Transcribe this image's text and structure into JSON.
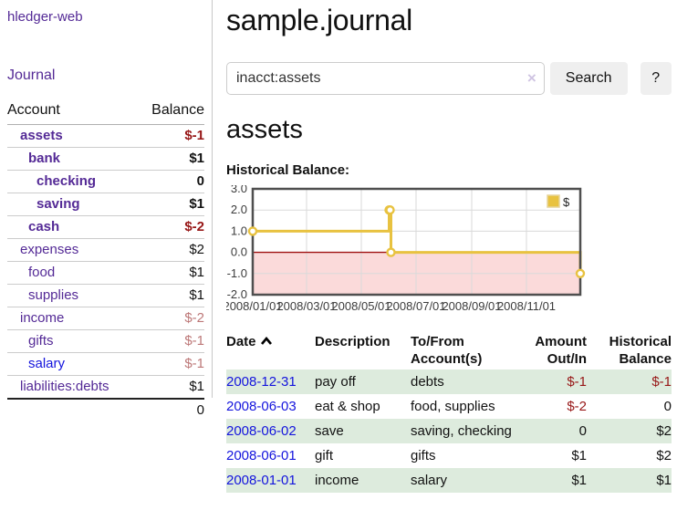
{
  "colors": {
    "purple": "#542a96",
    "blue": "#1414dd",
    "neg-strong": "#971717",
    "neg-faded": "#bd7878",
    "stripe": "#ddebdd",
    "btn-bg": "#efefef",
    "divider": "#c8c8c8"
  },
  "sidebar": {
    "brand": "hledger-web",
    "nav": {
      "journal": "Journal"
    },
    "accounts_table": {
      "headers": {
        "account": "Account",
        "balance": "Balance"
      },
      "rows": [
        {
          "name": "assets",
          "level": 1,
          "balance": "$-1",
          "bold": true,
          "neg": "strong",
          "link": "visited"
        },
        {
          "name": "bank",
          "level": 2,
          "balance": "$1",
          "bold": true,
          "neg": "none",
          "link": "visited"
        },
        {
          "name": "checking",
          "level": 3,
          "balance": "0",
          "bold": true,
          "neg": "none",
          "link": "visited"
        },
        {
          "name": "saving",
          "level": 3,
          "balance": "$1",
          "bold": true,
          "neg": "none",
          "link": "visited"
        },
        {
          "name": "cash",
          "level": 2,
          "balance": "$-2",
          "bold": true,
          "neg": "strong",
          "link": "visited"
        },
        {
          "name": "expenses",
          "level": 1,
          "balance": "$2",
          "bold": false,
          "neg": "none",
          "link": "visited"
        },
        {
          "name": "food",
          "level": 2,
          "balance": "$1",
          "bold": false,
          "neg": "none",
          "link": "visited"
        },
        {
          "name": "supplies",
          "level": 2,
          "balance": "$1",
          "bold": false,
          "neg": "none",
          "link": "visited"
        },
        {
          "name": "income",
          "level": 1,
          "balance": "$-2",
          "bold": false,
          "neg": "faded",
          "link": "visited"
        },
        {
          "name": "gifts",
          "level": 2,
          "balance": "$-1",
          "bold": false,
          "neg": "faded",
          "link": "visited"
        },
        {
          "name": "salary",
          "level": 2,
          "balance": "$-1",
          "bold": false,
          "neg": "faded",
          "link": "unvisited"
        },
        {
          "name": "liabilities:debts",
          "level": 1,
          "balance": "$1",
          "bold": false,
          "neg": "none",
          "link": "visited"
        }
      ],
      "total": "0"
    }
  },
  "header": {
    "title": "sample.journal"
  },
  "search": {
    "value": "inacct:assets",
    "clear_icon": "×",
    "button": "Search",
    "help_button": "?"
  },
  "main": {
    "account_heading": "assets"
  },
  "chart_data": {
    "type": "line",
    "title": "Historical Balance:",
    "x_range": [
      "2008-01-01",
      "2008-12-31"
    ],
    "ylim": [
      -2,
      3
    ],
    "yticks": [
      3,
      2,
      1,
      0,
      -1,
      -2
    ],
    "xticks": [
      "2008/01/01",
      "2008/03/01",
      "2008/05/01",
      "2008/07/01",
      "2008/09/01",
      "2008/11/01"
    ],
    "series": [
      {
        "name": "$",
        "color": "#e8c240",
        "steps": true,
        "points": [
          [
            "2008-01-01",
            1
          ],
          [
            "2008-06-01",
            2
          ],
          [
            "2008-06-02",
            2
          ],
          [
            "2008-06-03",
            0
          ],
          [
            "2008-12-31",
            -1
          ]
        ]
      }
    ],
    "legend_position": "top-right",
    "grid": true,
    "grid_color": "#dadada",
    "border_color": "#4f4f4f",
    "zero_line_color": "#a01010",
    "negative_region_color": "#fbdada"
  },
  "register": {
    "headers": {
      "date": "Date",
      "description": "Description",
      "tofrom1": "To/From",
      "tofrom2": "Account(s)",
      "amount1": "Amount",
      "amount2": "Out/In",
      "balance1": "Historical",
      "balance2": "Balance"
    },
    "rows": [
      {
        "date": "2008-12-31",
        "description": "pay off",
        "accounts": "debts",
        "amount": "$-1",
        "amount_neg": true,
        "balance": "$-1",
        "balance_neg": true
      },
      {
        "date": "2008-06-03",
        "description": "eat & shop",
        "accounts": "food, supplies",
        "amount": "$-2",
        "amount_neg": true,
        "balance": "0",
        "balance_neg": false
      },
      {
        "date": "2008-06-02",
        "description": "save",
        "accounts": "saving, checking",
        "amount": "0",
        "amount_neg": false,
        "balance": "$2",
        "balance_neg": false
      },
      {
        "date": "2008-06-01",
        "description": "gift",
        "accounts": "gifts",
        "amount": "$1",
        "amount_neg": false,
        "balance": "$2",
        "balance_neg": false
      },
      {
        "date": "2008-01-01",
        "description": "income",
        "accounts": "salary",
        "amount": "$1",
        "amount_neg": false,
        "balance": "$1",
        "balance_neg": false
      }
    ]
  }
}
